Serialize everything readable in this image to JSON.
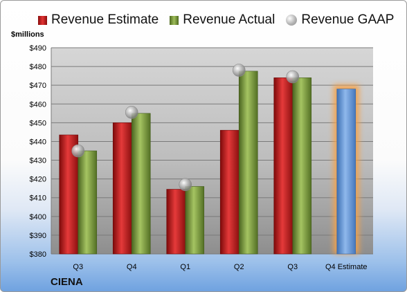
{
  "chart_data": {
    "type": "bar",
    "units_label": "$millions",
    "company": "CIENA",
    "categories": [
      "Q3",
      "Q4",
      "Q1",
      "Q2",
      "Q3",
      "Q4 Estimate"
    ],
    "series": [
      {
        "name": "Revenue Estimate",
        "values": [
          443.5,
          450,
          414.5,
          446,
          474,
          468
        ],
        "color": "#d42a2a"
      },
      {
        "name": "Revenue Actual",
        "values": [
          435,
          455,
          416,
          477.5,
          474,
          null
        ],
        "color": "#8aab4a"
      },
      {
        "name": "Revenue GAAP",
        "values": [
          435,
          455.5,
          417,
          478,
          474.5,
          null
        ],
        "color": "#a8a8a8"
      }
    ],
    "forecast": {
      "category_index": 5,
      "value": 468,
      "color": "#5f95d8",
      "glow_color": "#f5a24a"
    },
    "ylim": [
      380,
      490
    ],
    "yticks": [
      380,
      390,
      400,
      410,
      420,
      430,
      440,
      450,
      460,
      470,
      480,
      490
    ],
    "ytick_labels": [
      "$380",
      "$390",
      "$400",
      "$410",
      "$420",
      "$430",
      "$440",
      "$450",
      "$460",
      "$470",
      "$480",
      "$490"
    ],
    "grid": true,
    "legend": "top"
  }
}
